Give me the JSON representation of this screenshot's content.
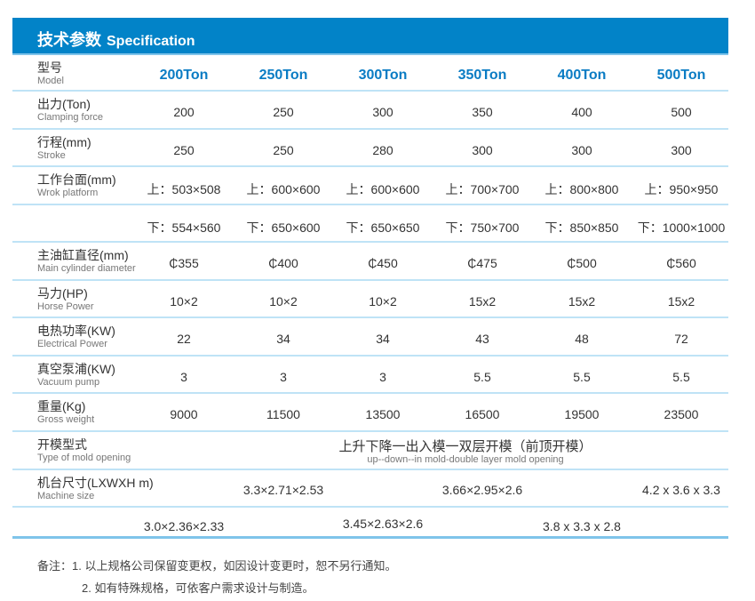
{
  "header": {
    "title_zh": "技术参数",
    "title_en": "Specification"
  },
  "colors": {
    "accent": "#0283c8",
    "line": "#bfe3f6"
  },
  "model": {
    "zh": "型号",
    "en": "Model",
    "values": [
      "200Ton",
      "250Ton",
      "300Ton",
      "350Ton",
      "400Ton",
      "500Ton"
    ]
  },
  "rows": [
    {
      "zh": "出力(Ton)",
      "en": "Clamping force",
      "values": [
        "200",
        "250",
        "300",
        "350",
        "400",
        "500"
      ]
    },
    {
      "zh": "行程(mm)",
      "en": "Stroke",
      "values": [
        "250",
        "250",
        "280",
        "300",
        "300",
        "300"
      ]
    },
    {
      "zh": "工作台面(mm)",
      "en": "Wrok platform",
      "values": [
        "上：503×508",
        "上：600×600",
        "上：600×600",
        "上：700×700",
        "上：800×800",
        "上：950×950"
      ]
    },
    {
      "zh": "",
      "en": "",
      "values": [
        "下：554×560",
        "下：650×600",
        "下：650×650",
        "下：750×700",
        "下：850×850",
        "下：1000×1000"
      ]
    },
    {
      "zh": "主油缸直径(mm)",
      "en": "Main cylinder diameter",
      "values": [
        "₵355",
        "₵400",
        "₵450",
        "₵475",
        "₵500",
        "₵560"
      ]
    },
    {
      "zh": "马力(HP)",
      "en": "Horse Power",
      "values": [
        "10×2",
        "10×2",
        "10×2",
        "15x2",
        "15x2",
        "15x2"
      ]
    },
    {
      "zh": "电热功率(KW)",
      "en": "Electrical Power",
      "values": [
        "22",
        "34",
        "34",
        "43",
        "48",
        "72"
      ]
    },
    {
      "zh": "真空泵浦(KW)",
      "en": "Vacuum pump",
      "values": [
        "3",
        "3",
        "3",
        "5.5",
        "5.5",
        "5.5"
      ]
    },
    {
      "zh": "重量(Kg)",
      "en": "Gross weight",
      "values": [
        "9000",
        "11500",
        "13500",
        "16500",
        "19500",
        "23500"
      ]
    }
  ],
  "mold": {
    "zh": "开模型式",
    "en": "Type of mold opening",
    "value_zh": "上升下降一出入模一双层开模（前顶开模）",
    "value_en": "up--down--in mold-double layer mold opening"
  },
  "size": {
    "zh": "机台尺寸(LXWXH m)",
    "en": "Machine size",
    "row1": [
      "3.3×2.71×2.53",
      "3.66×2.95×2.6",
      "4.2 x 3.6 x 3.3"
    ],
    "row2": [
      "3.0×2.36×2.33",
      "3.45×2.63×2.6",
      "3.8 x 3.3 x 2.8"
    ]
  },
  "notes": [
    "备注：1. 以上规格公司保留变更权，如因设计变更时，恕不另行通知。",
    "2. 如有特殊规格，可依客户需求设计与制造。"
  ]
}
